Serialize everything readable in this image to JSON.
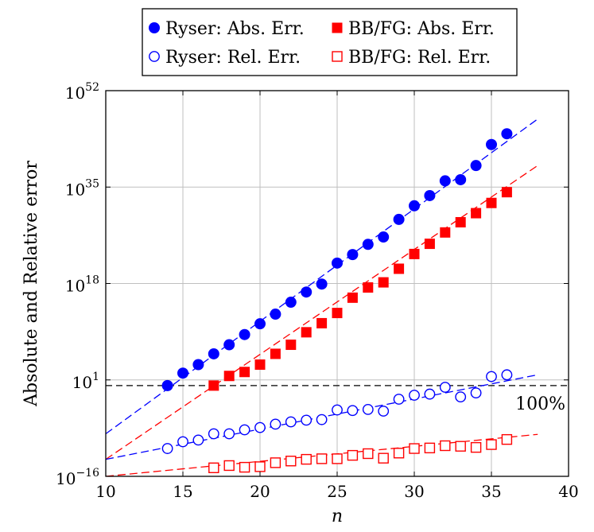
{
  "chart_data": {
    "type": "scatter",
    "xlabel": "n",
    "ylabel": "Absolute and Relative error",
    "xlim": [
      10,
      40
    ],
    "ylim_log10": [
      -16,
      52
    ],
    "y_scale": "log",
    "grid": true,
    "legend_position": "top-center",
    "x_ticks": [
      10,
      15,
      20,
      25,
      30,
      35,
      40
    ],
    "y_ticks": [
      {
        "exp": -16,
        "base": "10",
        "sup": "−16"
      },
      {
        "exp": 1,
        "base": "10",
        "sup": "1"
      },
      {
        "exp": 18,
        "base": "10",
        "sup": "18"
      },
      {
        "exp": 35,
        "base": "10",
        "sup": "35"
      },
      {
        "exp": 52,
        "base": "10",
        "sup": "52"
      }
    ],
    "reference_line": {
      "y_log10": 0,
      "label": "100%",
      "color": "#000000"
    },
    "series": [
      {
        "name": "Ryser: Abs. Err.",
        "color": "#0000ff",
        "marker": "circle",
        "filled": true,
        "x": [
          14,
          15,
          16,
          17,
          18,
          19,
          20,
          21,
          22,
          23,
          24,
          25,
          26,
          27,
          28,
          29,
          30,
          31,
          32,
          33,
          34,
          35,
          36
        ],
        "y_log10": [
          0.0,
          2.2,
          3.7,
          5.6,
          7.2,
          9.0,
          10.9,
          12.6,
          14.7,
          16.5,
          17.9,
          21.6,
          23.1,
          24.9,
          26.2,
          29.3,
          31.7,
          33.5,
          36.1,
          36.3,
          38.8,
          42.5,
          44.4
        ],
        "fit_log10": [
          [
            10,
            -8.5
          ],
          [
            38,
            47.0
          ]
        ]
      },
      {
        "name": "BB/FG: Abs. Err.",
        "color": "#ff0000",
        "marker": "square",
        "filled": true,
        "x": [
          17,
          18,
          19,
          20,
          21,
          22,
          23,
          24,
          25,
          26,
          27,
          28,
          29,
          30,
          31,
          32,
          33,
          34,
          35,
          36
        ],
        "y_log10": [
          0.0,
          1.7,
          2.4,
          3.7,
          5.6,
          7.2,
          9.4,
          11.0,
          12.8,
          15.5,
          17.3,
          18.2,
          20.6,
          23.2,
          25.0,
          27.0,
          28.8,
          30.4,
          32.2,
          34.1
        ],
        "fit_log10": [
          [
            10,
            -13.0
          ],
          [
            38,
            38.8
          ]
        ]
      },
      {
        "name": "Ryser: Rel. Err.",
        "color": "#0000ff",
        "marker": "circle",
        "filled": false,
        "x": [
          14,
          15,
          16,
          17,
          18,
          19,
          20,
          21,
          22,
          23,
          24,
          25,
          26,
          27,
          28,
          29,
          30,
          31,
          32,
          33,
          34,
          35,
          36
        ],
        "y_log10": [
          -11.1,
          -9.9,
          -9.6,
          -8.5,
          -8.5,
          -7.8,
          -7.4,
          -6.8,
          -6.4,
          -6.1,
          -6.0,
          -4.3,
          -4.4,
          -4.2,
          -4.5,
          -2.4,
          -1.7,
          -1.5,
          -0.3,
          -2.0,
          -1.3,
          1.6,
          1.9
        ],
        "fit_log10": [
          [
            10,
            -13.0
          ],
          [
            38,
            1.9
          ]
        ]
      },
      {
        "name": "BB/FG: Rel. Err.",
        "color": "#ff0000",
        "marker": "square",
        "filled": false,
        "x": [
          17,
          18,
          19,
          20,
          21,
          22,
          23,
          24,
          25,
          26,
          27,
          28,
          29,
          30,
          31,
          32,
          33,
          34,
          35,
          36
        ],
        "y_log10": [
          -14.5,
          -14.1,
          -14.4,
          -14.3,
          -13.6,
          -13.3,
          -13.0,
          -12.9,
          -12.9,
          -12.3,
          -12.0,
          -12.8,
          -11.9,
          -11.1,
          -11.0,
          -10.6,
          -10.7,
          -10.9,
          -10.4,
          -9.5
        ],
        "fit_log10": [
          [
            10,
            -16.0
          ],
          [
            38,
            -8.6
          ]
        ]
      }
    ]
  }
}
